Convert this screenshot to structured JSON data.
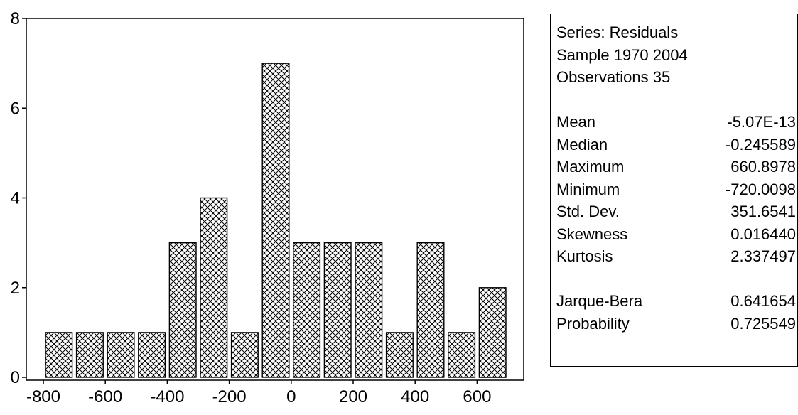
{
  "chart_data": {
    "type": "bar",
    "bins": [
      {
        "from": -800,
        "to": -700,
        "count": 1
      },
      {
        "from": -700,
        "to": -600,
        "count": 1
      },
      {
        "from": -600,
        "to": -500,
        "count": 1
      },
      {
        "from": -500,
        "to": -400,
        "count": 1
      },
      {
        "from": -400,
        "to": -300,
        "count": 3
      },
      {
        "from": -300,
        "to": -200,
        "count": 4
      },
      {
        "from": -200,
        "to": -100,
        "count": 1
      },
      {
        "from": -100,
        "to": 0,
        "count": 7
      },
      {
        "from": 0,
        "to": 100,
        "count": 3
      },
      {
        "from": 100,
        "to": 200,
        "count": 3
      },
      {
        "from": 200,
        "to": 300,
        "count": 3
      },
      {
        "from": 300,
        "to": 400,
        "count": 1
      },
      {
        "from": 400,
        "to": 500,
        "count": 3
      },
      {
        "from": 500,
        "to": 600,
        "count": 1
      },
      {
        "from": 600,
        "to": 700,
        "count": 2
      }
    ],
    "xlim": [
      -800,
      700
    ],
    "ylim": [
      0,
      8
    ],
    "x_ticks": [
      -800,
      -600,
      -400,
      -200,
      0,
      200,
      400,
      600
    ],
    "y_ticks": [
      0,
      2,
      4,
      6,
      8
    ],
    "bar_fill": "crosshatch",
    "grid": false,
    "legend": "none"
  },
  "stats": {
    "header": [
      "Series: Residuals",
      "Sample 1970 2004",
      "Observations 35"
    ],
    "moments": [
      {
        "label": "Mean",
        "value": "-5.07E-13"
      },
      {
        "label": "Median",
        "value": "-0.245589"
      },
      {
        "label": "Maximum",
        "value": "660.8978"
      },
      {
        "label": "Minimum",
        "value": "-720.0098"
      },
      {
        "label": "Std. Dev.",
        "value": "351.6541"
      },
      {
        "label": "Skewness",
        "value": "0.016440"
      },
      {
        "label": "Kurtosis",
        "value": "2.337497"
      }
    ],
    "tests": [
      {
        "label": "Jarque-Bera",
        "value": "0.641654"
      },
      {
        "label": "Probability",
        "value": "0.725549"
      }
    ]
  }
}
